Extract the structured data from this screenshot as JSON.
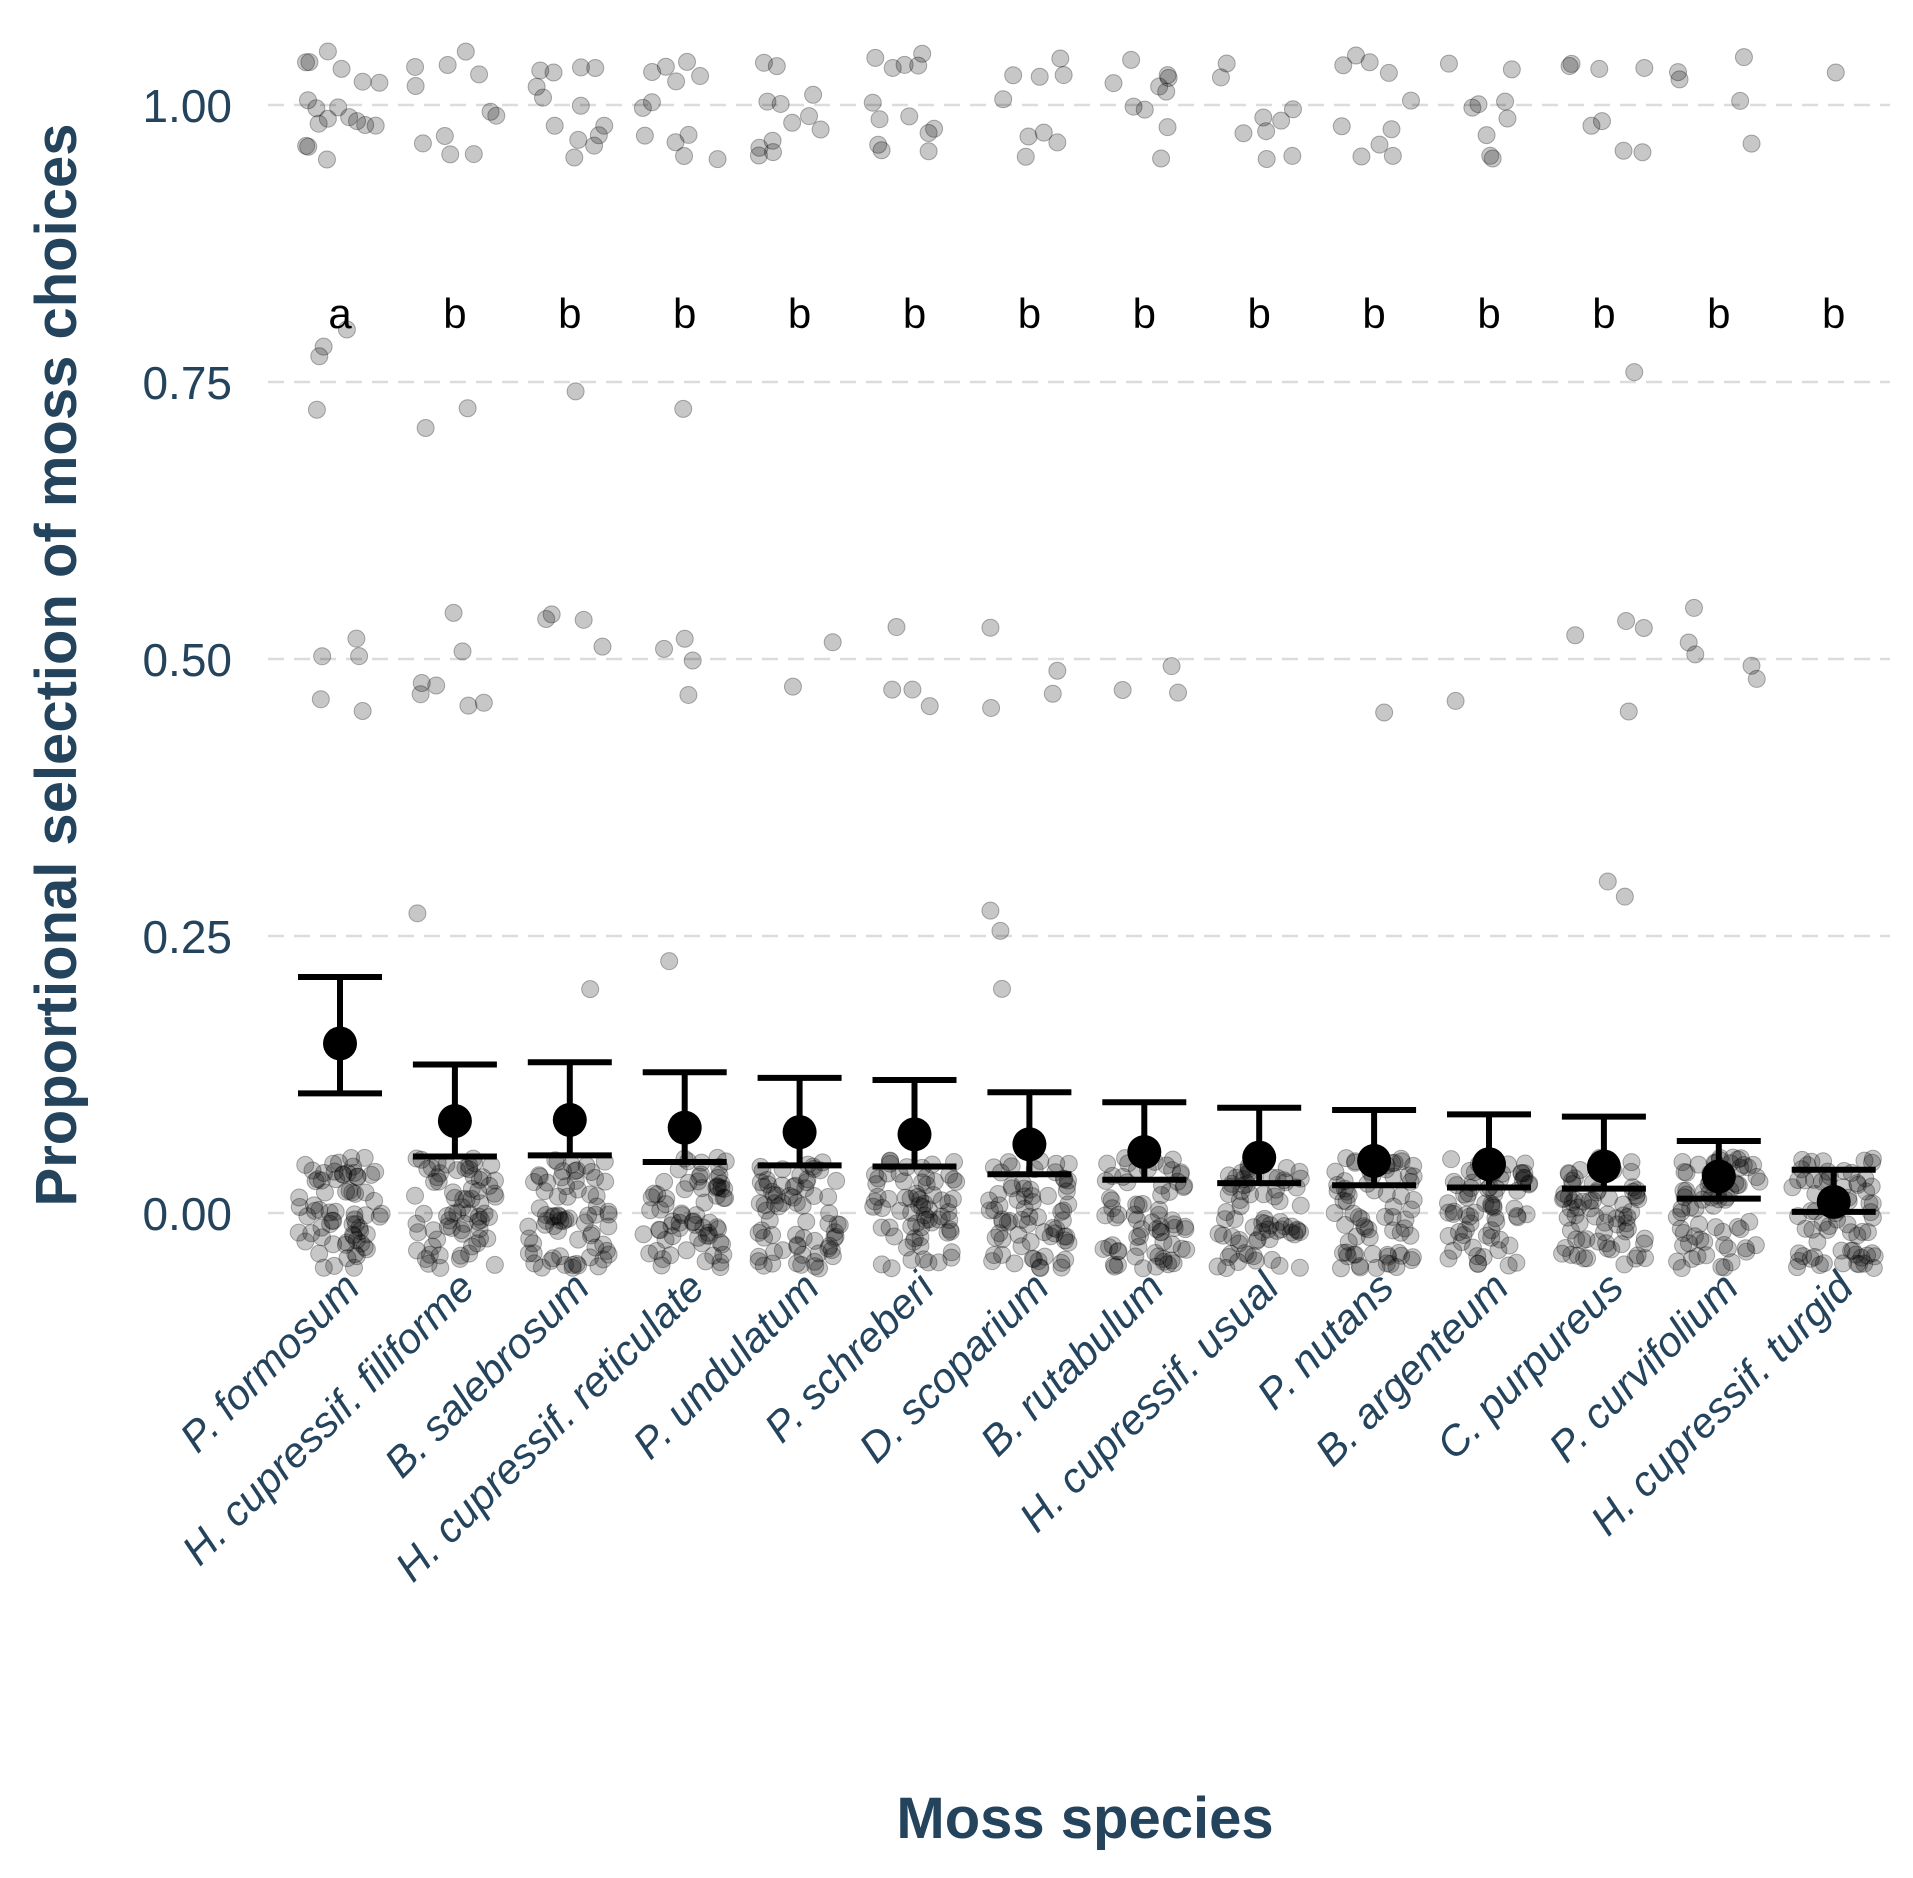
{
  "chart_data": {
    "type": "scatter",
    "title": "",
    "xlabel": "Moss species",
    "ylabel": "Proportional selection of moss choices",
    "ylim": [
      -0.06,
      1.06
    ],
    "yticks": [
      "0.00",
      "0.25",
      "0.50",
      "0.75",
      "1.00"
    ],
    "ytick_values": [
      0,
      0.25,
      0.5,
      0.75,
      1.0
    ],
    "grid": "horizontal dashed",
    "categories": [
      "P. formosum",
      "H. cupressif. filiforme",
      "B. salebrosum",
      "H. cupressif. reticulate",
      "P. undulatum",
      "P. schreberi",
      "D. scoparium",
      "B. rutabulum",
      "H. cupressif. usual",
      "P. nutans",
      "B. argenteum",
      "C. purpureus",
      "P. curvifolium",
      "H. cupressif. turgid"
    ],
    "significance_letters": [
      "a",
      "b",
      "b",
      "b",
      "b",
      "b",
      "b",
      "b",
      "b",
      "b",
      "b",
      "b",
      "b",
      "b"
    ],
    "means": [
      0.153,
      0.083,
      0.084,
      0.077,
      0.073,
      0.071,
      0.062,
      0.055,
      0.05,
      0.047,
      0.044,
      0.042,
      0.033,
      0.01
    ],
    "ci_lower": [
      0.108,
      0.051,
      0.052,
      0.046,
      0.043,
      0.042,
      0.035,
      0.03,
      0.027,
      0.025,
      0.023,
      0.022,
      0.013,
      0.001
    ],
    "ci_upper": [
      0.213,
      0.134,
      0.136,
      0.127,
      0.122,
      0.12,
      0.109,
      0.1,
      0.095,
      0.093,
      0.089,
      0.087,
      0.065,
      0.039
    ],
    "raw_points": {
      "description": "Jittered individual observations: dense cluster at 0 (jitter ±0.05) for every species plus these non-zero values",
      "values": [
        [
          1.0,
          1.0,
          1.0,
          1.0,
          1.0,
          1.0,
          1.0,
          1.0,
          1.0,
          1.0,
          1.0,
          1.0,
          1.0,
          1.0,
          1.0,
          1.0,
          1.0,
          1.0,
          0.75,
          0.75,
          0.75,
          0.75,
          0.5,
          0.5,
          0.5,
          0.5,
          0.5
        ],
        [
          1.0,
          1.0,
          1.0,
          1.0,
          1.0,
          1.0,
          1.0,
          1.0,
          1.0,
          1.0,
          1.0,
          0.75,
          0.75,
          0.5,
          0.5,
          0.5,
          0.5,
          0.5,
          0.5,
          0.5,
          0.25
        ],
        [
          1.0,
          1.0,
          1.0,
          1.0,
          1.0,
          1.0,
          1.0,
          1.0,
          1.0,
          1.0,
          1.0,
          1.0,
          1.0,
          0.75,
          0.5,
          0.5,
          0.5,
          0.5,
          0.25
        ],
        [
          1.0,
          1.0,
          1.0,
          1.0,
          1.0,
          1.0,
          1.0,
          1.0,
          1.0,
          1.0,
          1.0,
          1.0,
          0.75,
          0.5,
          0.5,
          0.5,
          0.5,
          0.25
        ],
        [
          1.0,
          1.0,
          1.0,
          1.0,
          1.0,
          1.0,
          1.0,
          1.0,
          1.0,
          1.0,
          1.0,
          1.0,
          0.5,
          0.5
        ],
        [
          1.0,
          1.0,
          1.0,
          1.0,
          1.0,
          1.0,
          1.0,
          1.0,
          1.0,
          1.0,
          1.0,
          1.0,
          1.0,
          0.5,
          0.5,
          0.5,
          0.5
        ],
        [
          1.0,
          1.0,
          1.0,
          1.0,
          1.0,
          1.0,
          1.0,
          1.0,
          1.0,
          0.5,
          0.5,
          0.5,
          0.5,
          0.25,
          0.25,
          0.25
        ],
        [
          1.0,
          1.0,
          1.0,
          1.0,
          1.0,
          1.0,
          1.0,
          1.0,
          1.0,
          1.0,
          0.5,
          0.5,
          0.5
        ],
        [
          1.0,
          1.0,
          1.0,
          1.0,
          1.0,
          1.0,
          1.0,
          1.0,
          1.0
        ],
        [
          1.0,
          1.0,
          1.0,
          1.0,
          1.0,
          1.0,
          1.0,
          1.0,
          1.0,
          1.0,
          0.5
        ],
        [
          1.0,
          1.0,
          1.0,
          1.0,
          1.0,
          1.0,
          1.0,
          1.0,
          1.0,
          0.5
        ],
        [
          1.0,
          1.0,
          1.0,
          1.0,
          1.0,
          1.0,
          1.0,
          1.0,
          0.75,
          0.5,
          0.5,
          0.5,
          0.5,
          0.25,
          0.25
        ],
        [
          1.0,
          1.0,
          1.0,
          1.0,
          1.0,
          0.5,
          0.5,
          0.5,
          0.5,
          0.5
        ],
        [
          1.0
        ]
      ],
      "zero_counts": [
        70,
        70,
        70,
        70,
        70,
        70,
        70,
        70,
        70,
        70,
        70,
        70,
        70,
        70
      ]
    }
  }
}
